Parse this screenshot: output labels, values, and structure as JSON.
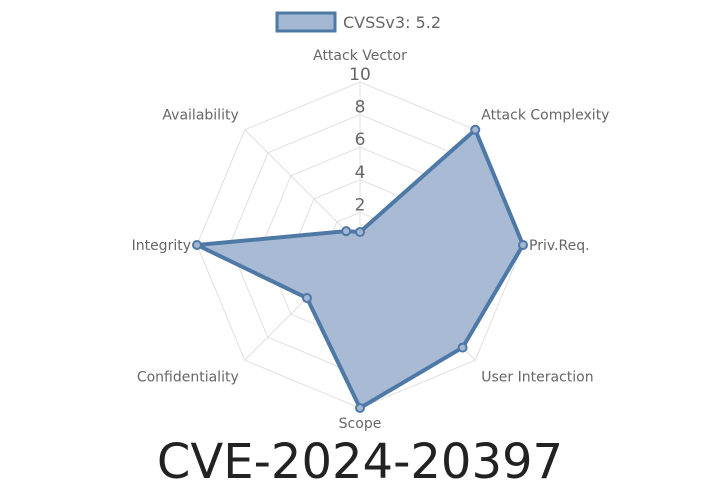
{
  "caption": "CVE-2024-20397",
  "chart_data": {
    "type": "radar",
    "axes": [
      "Attack Vector",
      "Attack Complexity",
      "Priv.Req.",
      "User Interaction",
      "Scope",
      "Confidentiality",
      "Integrity",
      "Availability"
    ],
    "ticks": [
      "2",
      "4",
      "6",
      "8",
      "10"
    ],
    "rlim": [
      0,
      10
    ],
    "series": [
      {
        "name": "CVSSv3: 5.2",
        "values": [
          0.8,
          10,
          10,
          8.9,
          10,
          4.6,
          10,
          1.2
        ]
      }
    ],
    "legend": "top-center",
    "grid": true,
    "colors": {
      "line": "#4e79a7",
      "fill": "#a3b6d2",
      "grid": "#e0e0e0"
    }
  }
}
